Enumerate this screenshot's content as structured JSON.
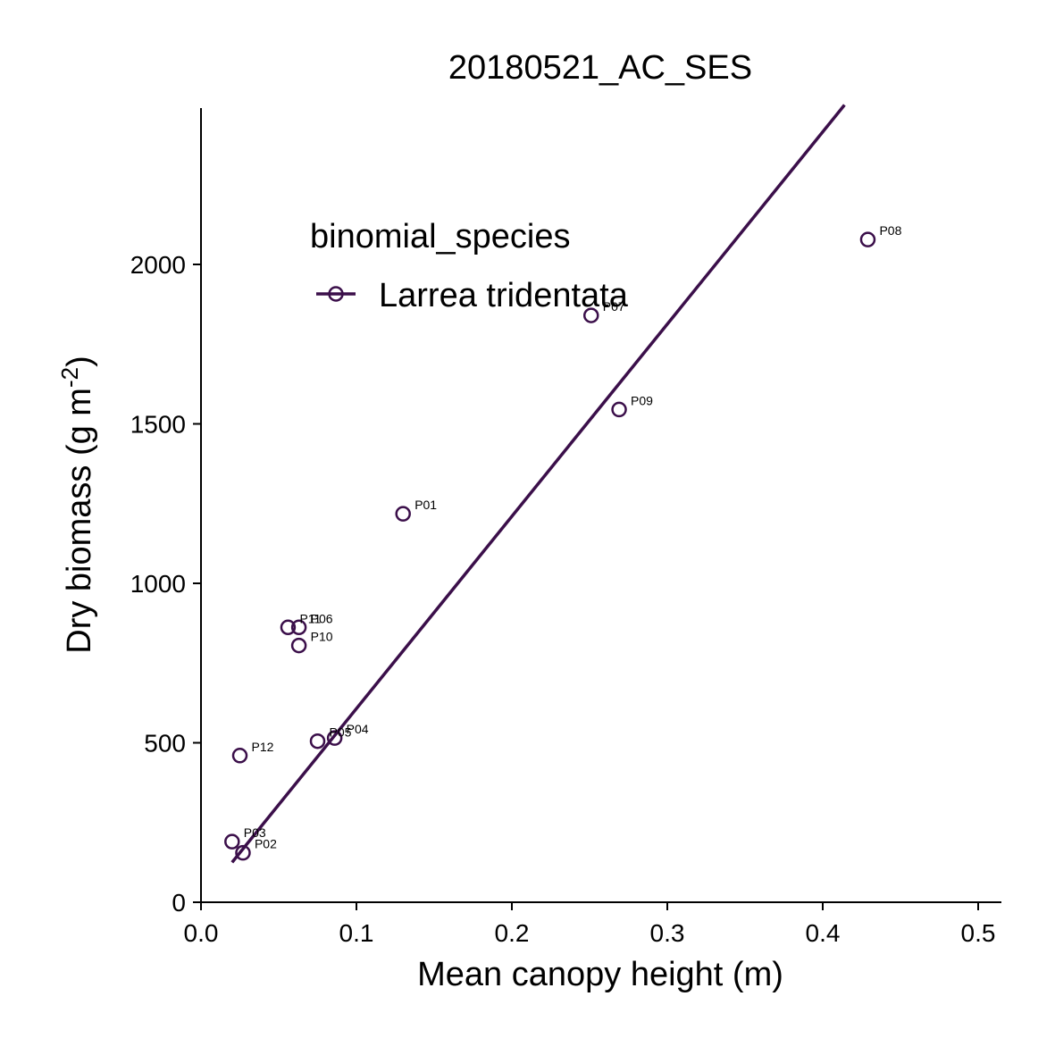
{
  "chart_data": {
    "type": "scatter",
    "title": "20180521_AC_SES",
    "xlabel": "Mean canopy height (m)",
    "ylabel": {
      "prefix": "Dry biomass (g m",
      "superscript": "-2",
      "suffix": ")"
    },
    "xlim": [
      0.0,
      0.515
    ],
    "ylim": [
      0,
      2500
    ],
    "x_ticks": [
      0.0,
      0.1,
      0.2,
      0.3,
      0.4,
      0.5
    ],
    "x_tick_labels": [
      "0.0",
      "0.1",
      "0.2",
      "0.3",
      "0.4",
      "0.5"
    ],
    "y_ticks": [
      0,
      500,
      1000,
      1500,
      2000
    ],
    "y_tick_labels": [
      "0",
      "500",
      "1000",
      "1500",
      "2000"
    ],
    "grid": false,
    "legend": {
      "title": "binomial_species",
      "position": "top-left",
      "entries": [
        {
          "label": "Larrea tridentata",
          "color": "#3b0f4a"
        }
      ]
    },
    "series": [
      {
        "name": "Larrea tridentata",
        "color": "#3b0f4a",
        "points": [
          {
            "id": "P01",
            "x": 0.13,
            "y": 1218
          },
          {
            "id": "P02",
            "x": 0.027,
            "y": 155
          },
          {
            "id": "P03",
            "x": 0.02,
            "y": 190
          },
          {
            "id": "P04",
            "x": 0.086,
            "y": 515
          },
          {
            "id": "P05",
            "x": 0.075,
            "y": 505
          },
          {
            "id": "P06",
            "x": 0.063,
            "y": 862
          },
          {
            "id": "P07",
            "x": 0.251,
            "y": 1840
          },
          {
            "id": "P08",
            "x": 0.429,
            "y": 2078
          },
          {
            "id": "P09",
            "x": 0.269,
            "y": 1545
          },
          {
            "id": "P10",
            "x": 0.063,
            "y": 805
          },
          {
            "id": "P11",
            "x": 0.056,
            "y": 862
          },
          {
            "id": "P12",
            "x": 0.025,
            "y": 460
          }
        ],
        "fit_line": {
          "x": [
            0.02,
            0.414
          ],
          "y": [
            125,
            2500
          ]
        }
      }
    ]
  }
}
